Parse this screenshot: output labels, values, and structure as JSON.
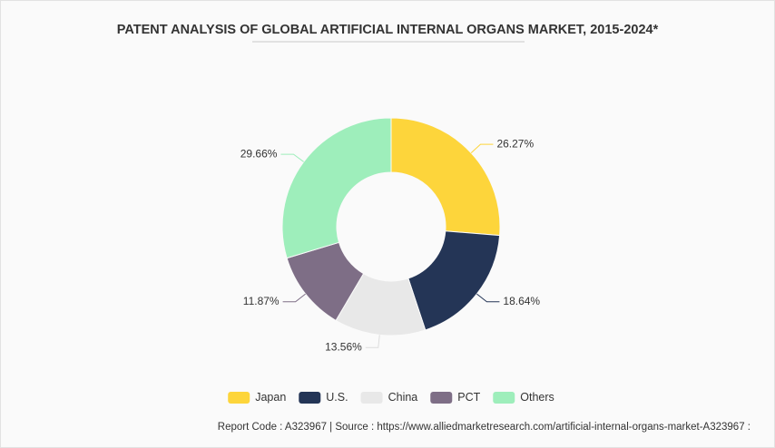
{
  "chart_data": {
    "type": "donut",
    "title": "PATENT ANALYSIS OF GLOBAL ARTIFICIAL INTERNAL ORGANS MARKET, 2015-2024*",
    "categories": [
      "Japan",
      "U.S.",
      "China",
      "PCT",
      "Others"
    ],
    "values": [
      26.27,
      18.64,
      13.56,
      11.87,
      29.66
    ],
    "value_labels": [
      "26.27%",
      "18.64%",
      "13.56%",
      "11.87%",
      "29.66%"
    ],
    "colors": [
      "#fdd53b",
      "#243556",
      "#e8e8e8",
      "#7e6e86",
      "#9eeebb"
    ],
    "legend": "bottom",
    "source": "Report Code : A323967  |  Source : https://www.alliedmarketresearch.com/artificial-internal-organs-market-A323967 :"
  }
}
